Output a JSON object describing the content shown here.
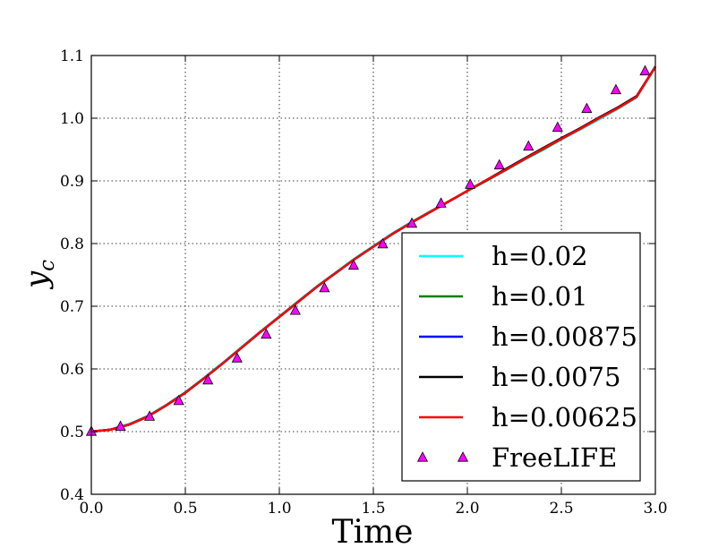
{
  "chart_data": {
    "type": "line",
    "title": "",
    "xlabel": "Time",
    "ylabel_base": "y",
    "ylabel_sub": "c",
    "xlim": [
      0.0,
      3.0
    ],
    "ylim": [
      0.4,
      1.1
    ],
    "xticks": [
      "0.0",
      "0.5",
      "1.0",
      "1.5",
      "2.0",
      "2.5",
      "3.0"
    ],
    "yticks": [
      "0.4",
      "0.5",
      "0.6",
      "0.7",
      "0.8",
      "0.9",
      "1.0",
      "1.1"
    ],
    "grid": true,
    "legend_position": "lower-right",
    "x": [
      0.0,
      0.1,
      0.2,
      0.3,
      0.4,
      0.5,
      0.6,
      0.7,
      0.8,
      0.9,
      1.0,
      1.1,
      1.2,
      1.3,
      1.4,
      1.5,
      1.6,
      1.7,
      1.8,
      1.9,
      2.0,
      2.1,
      2.2,
      2.3,
      2.4,
      2.5,
      2.6,
      2.7,
      2.8,
      2.9,
      3.0
    ],
    "series": [
      {
        "name": "h=0.02",
        "color": "#00ffff",
        "style": "line",
        "values": [
          0.5,
          0.503,
          0.512,
          0.525,
          0.543,
          0.563,
          0.586,
          0.61,
          0.635,
          0.66,
          0.684,
          0.708,
          0.732,
          0.754,
          0.776,
          0.796,
          0.816,
          0.834,
          0.851,
          0.867,
          0.884,
          0.9,
          0.916,
          0.933,
          0.949,
          0.966,
          0.982,
          0.998,
          1.015,
          1.033,
          1.083
        ]
      },
      {
        "name": "h=0.01",
        "color": "#008000",
        "style": "line",
        "values": [
          0.5,
          0.503,
          0.511,
          0.524,
          0.542,
          0.562,
          0.585,
          0.609,
          0.634,
          0.659,
          0.683,
          0.707,
          0.731,
          0.753,
          0.775,
          0.795,
          0.815,
          0.833,
          0.85,
          0.867,
          0.884,
          0.9,
          0.917,
          0.934,
          0.95,
          0.967,
          0.983,
          1.0,
          1.016,
          1.034,
          1.082
        ]
      },
      {
        "name": "h=0.00875",
        "color": "#0000ff",
        "style": "line",
        "values": [
          0.5,
          0.503,
          0.511,
          0.524,
          0.542,
          0.562,
          0.585,
          0.609,
          0.634,
          0.659,
          0.683,
          0.707,
          0.731,
          0.753,
          0.775,
          0.795,
          0.815,
          0.833,
          0.85,
          0.867,
          0.884,
          0.901,
          0.918,
          0.935,
          0.951,
          0.968,
          0.984,
          1.001,
          1.017,
          1.035,
          1.082
        ]
      },
      {
        "name": "h=0.0075",
        "color": "#000000",
        "style": "line",
        "values": [
          0.5,
          0.503,
          0.511,
          0.524,
          0.542,
          0.562,
          0.585,
          0.609,
          0.634,
          0.659,
          0.683,
          0.707,
          0.731,
          0.753,
          0.775,
          0.795,
          0.815,
          0.833,
          0.85,
          0.867,
          0.884,
          0.901,
          0.918,
          0.935,
          0.952,
          0.968,
          0.984,
          1.001,
          1.017,
          1.035,
          1.082
        ]
      },
      {
        "name": "h=0.00625",
        "color": "#ff0000",
        "style": "line",
        "values": [
          0.5,
          0.503,
          0.511,
          0.524,
          0.542,
          0.562,
          0.585,
          0.609,
          0.634,
          0.659,
          0.683,
          0.707,
          0.731,
          0.753,
          0.775,
          0.795,
          0.815,
          0.833,
          0.85,
          0.867,
          0.884,
          0.901,
          0.917,
          0.934,
          0.951,
          0.967,
          0.983,
          1.0,
          1.016,
          1.034,
          1.082
        ]
      },
      {
        "name": "FreeLIFE",
        "color": "#ff00ff",
        "style": "marker",
        "x": [
          0.0,
          0.155,
          0.31,
          0.465,
          0.62,
          0.775,
          0.93,
          1.085,
          1.24,
          1.395,
          1.55,
          1.705,
          1.86,
          2.015,
          2.17,
          2.325,
          2.48,
          2.635,
          2.79,
          2.945
        ],
        "values": [
          0.5,
          0.508,
          0.524,
          0.549,
          0.582,
          0.617,
          0.655,
          0.693,
          0.729,
          0.765,
          0.799,
          0.832,
          0.864,
          0.894,
          0.925,
          0.955,
          0.985,
          1.015,
          1.045,
          1.075
        ]
      }
    ]
  }
}
